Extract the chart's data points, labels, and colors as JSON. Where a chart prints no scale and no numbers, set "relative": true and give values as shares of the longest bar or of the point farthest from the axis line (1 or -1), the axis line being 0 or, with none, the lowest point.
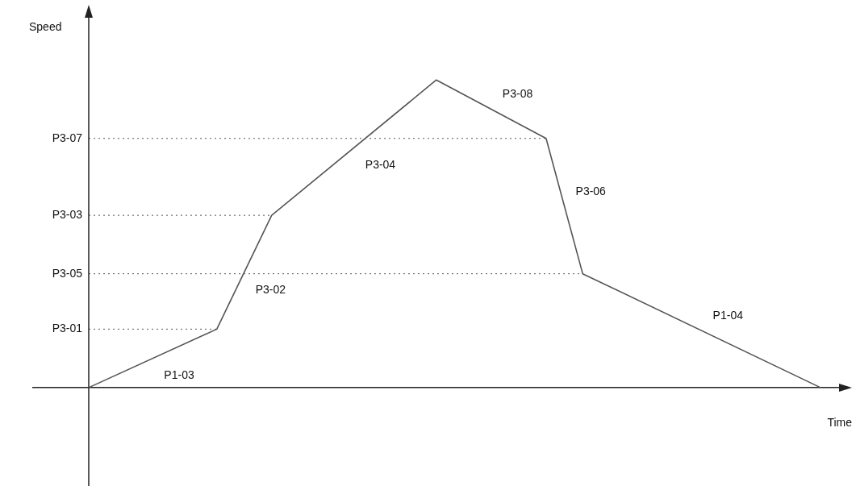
{
  "chart_data": {
    "type": "line",
    "xlabel": "Time",
    "ylabel": "Speed",
    "marker": "none",
    "line_style": "solid",
    "categories": [
      null,
      null,
      null,
      null,
      null,
      null,
      null,
      null,
      null,
      null,
      null,
      null,
      null,
      null,
      null,
      null,
      null,
      null,
      null,
      null,
      null,
      null,
      null,
      null,
      null,
      null,
      null,
      null,
      null,
      null,
      null,
      null,
      null,
      null,
      null,
      null,
      null,
      null,
      null,
      null,
      null
    ],
    "relative": true,
    "series": [
      {
        "color": "#555555",
        "values": [
          0,
          null,
          null,
          null,
          null,
          null,
          null,
          0.19,
          null,
          null,
          0.56,
          null,
          null,
          null,
          null,
          null,
          null,
          null,
          null,
          1,
          null,
          null,
          null,
          null,
          null,
          0.81,
          null,
          0.37,
          null,
          null,
          null,
          null,
          null,
          null,
          null,
          null,
          null,
          null,
          null,
          null,
          0
        ]
      }
    ],
    "ref_lines": [
      {
        "axis": "y",
        "value": 0.81,
        "label": "P3-07",
        "line_style": "dotted",
        "color": "#555555"
      },
      {
        "axis": "y",
        "value": 0.56,
        "label": "P3-03",
        "line_style": "dotted",
        "color": "#555555"
      },
      {
        "axis": "y",
        "value": 0.37,
        "label": "P3-05",
        "line_style": "dotted",
        "color": "#555555"
      },
      {
        "axis": "y",
        "value": 0.19,
        "label": "P3-01",
        "line_style": "dotted",
        "color": "#555555"
      }
    ],
    "annotations": [
      "P1-03",
      "P3-02",
      "P3-04",
      "P3-08",
      "P3-06",
      "P1-04"
    ]
  }
}
